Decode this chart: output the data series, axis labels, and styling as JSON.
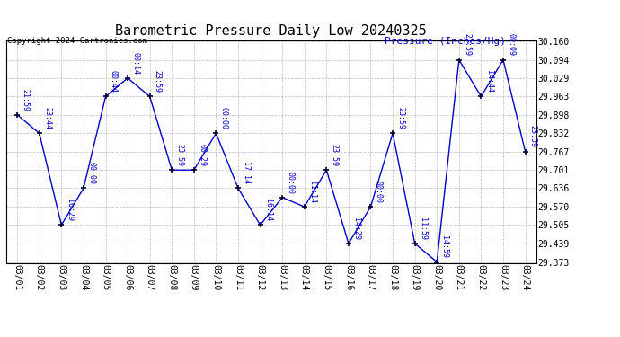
{
  "title": "Barometric Pressure Daily Low 20240325",
  "ylabel": "Pressure (Inches/Hg)",
  "copyright": "Copyright 2024 Cartronics.com",
  "background_color": "#ffffff",
  "line_color": "#0000cc",
  "marker_color": "#000033",
  "grid_color": "#aaaaaa",
  "dates": [
    "03/01",
    "03/02",
    "03/03",
    "03/04",
    "03/05",
    "03/06",
    "03/07",
    "03/08",
    "03/09",
    "03/10",
    "03/11",
    "03/12",
    "03/13",
    "03/14",
    "03/15",
    "03/16",
    "03/17",
    "03/18",
    "03/19",
    "03/20",
    "03/21",
    "03/22",
    "03/23",
    "03/24"
  ],
  "values": [
    29.898,
    29.832,
    29.505,
    29.636,
    29.963,
    30.029,
    29.963,
    29.701,
    29.701,
    29.832,
    29.636,
    29.505,
    29.603,
    29.57,
    29.701,
    29.439,
    29.57,
    29.832,
    29.439,
    29.373,
    30.094,
    29.963,
    30.094,
    29.767
  ],
  "time_labels": [
    "21:59",
    "23:44",
    "16:29",
    "00:00",
    "00:44",
    "00:14",
    "23:59",
    "23:59",
    "00:29",
    "00:00",
    "17:14",
    "16:14",
    "00:00",
    "11:14",
    "23:59",
    "14:29",
    "00:00",
    "23:59",
    "11:59",
    "14:59",
    "23:59",
    "14:44",
    "00:09",
    "23:59"
  ],
  "ylim_min": 29.373,
  "ylim_max": 30.16,
  "yticks": [
    29.373,
    29.439,
    29.505,
    29.57,
    29.636,
    29.701,
    29.767,
    29.832,
    29.898,
    29.963,
    30.029,
    30.094,
    30.16
  ],
  "title_fontsize": 11,
  "tick_fontsize": 7,
  "label_fontsize": 7,
  "ylabel_fontsize": 8
}
